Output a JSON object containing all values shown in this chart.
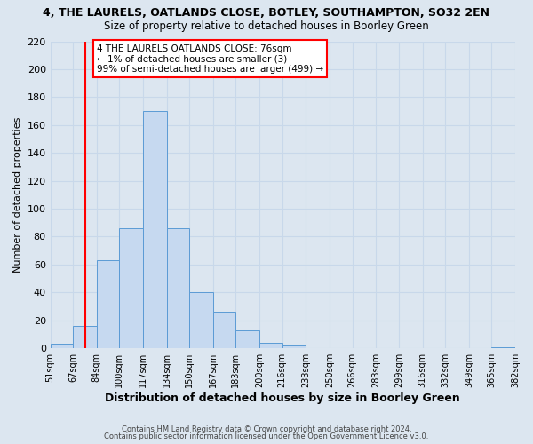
{
  "title": "4, THE LAURELS, OATLANDS CLOSE, BOTLEY, SOUTHAMPTON, SO32 2EN",
  "subtitle": "Size of property relative to detached houses in Boorley Green",
  "xlabel": "Distribution of detached houses by size in Boorley Green",
  "ylabel": "Number of detached properties",
  "bin_edges": [
    51,
    67,
    84,
    100,
    117,
    134,
    150,
    167,
    183,
    200,
    216,
    233,
    250,
    266,
    283,
    299,
    316,
    332,
    349,
    365,
    382
  ],
  "bar_heights": [
    3,
    16,
    63,
    86,
    170,
    86,
    40,
    26,
    13,
    4,
    2,
    0,
    0,
    0,
    0,
    0,
    0,
    0,
    0,
    1
  ],
  "bin_labels": [
    "51sqm",
    "67sqm",
    "84sqm",
    "100sqm",
    "117sqm",
    "134sqm",
    "150sqm",
    "167sqm",
    "183sqm",
    "200sqm",
    "216sqm",
    "233sqm",
    "250sqm",
    "266sqm",
    "283sqm",
    "299sqm",
    "316sqm",
    "332sqm",
    "349sqm",
    "365sqm",
    "382sqm"
  ],
  "bar_color": "#c6d9f0",
  "bar_edge_color": "#5b9bd5",
  "red_line_x": 76,
  "annotation_line1": "4 THE LAURELS OATLANDS CLOSE: 76sqm",
  "annotation_line2": "← 1% of detached houses are smaller (3)",
  "annotation_line3": "99% of semi-detached houses are larger (499) →",
  "ylim": [
    0,
    220
  ],
  "yticks": [
    0,
    20,
    40,
    60,
    80,
    100,
    120,
    140,
    160,
    180,
    200,
    220
  ],
  "grid_color": "#c8d8ea",
  "bg_color": "#dce6f0",
  "footer1": "Contains HM Land Registry data © Crown copyright and database right 2024.",
  "footer2": "Contains public sector information licensed under the Open Government Licence v3.0."
}
